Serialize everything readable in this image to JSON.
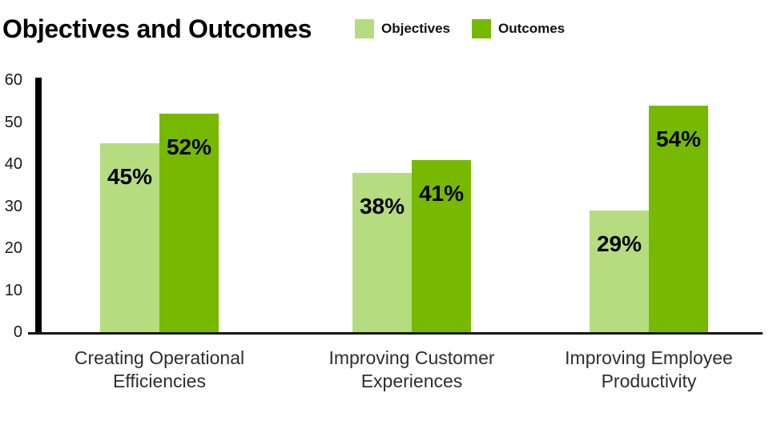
{
  "chart_data": {
    "type": "bar",
    "title": "Objectives and Outcomes",
    "categories": [
      "Creating Operational Efficiencies",
      "Improving Customer Experiences",
      "Improving Employee Productivity"
    ],
    "series": [
      {
        "name": "Objectives",
        "color": "#B5DC7E",
        "values": [
          45,
          38,
          29
        ]
      },
      {
        "name": "Outcomes",
        "color": "#76B900",
        "values": [
          52,
          41,
          54
        ]
      }
    ],
    "value_suffix": "%",
    "value_labels": [
      [
        "45%",
        "38%",
        "29%"
      ],
      [
        "52%",
        "41%",
        "54%"
      ]
    ],
    "xlabel": "",
    "ylabel": "",
    "ylim": [
      0,
      60
    ],
    "yticks": [
      0,
      10,
      20,
      30,
      40,
      50,
      60
    ],
    "grid": false,
    "legend_position": "top"
  },
  "colors": {
    "background": "#FFFFFF",
    "objectives_green": "#B5DC7E",
    "outcomes_green": "#76B900",
    "axis": "#000000",
    "title_text": "#000000",
    "category_text": "#2E2E2E"
  }
}
